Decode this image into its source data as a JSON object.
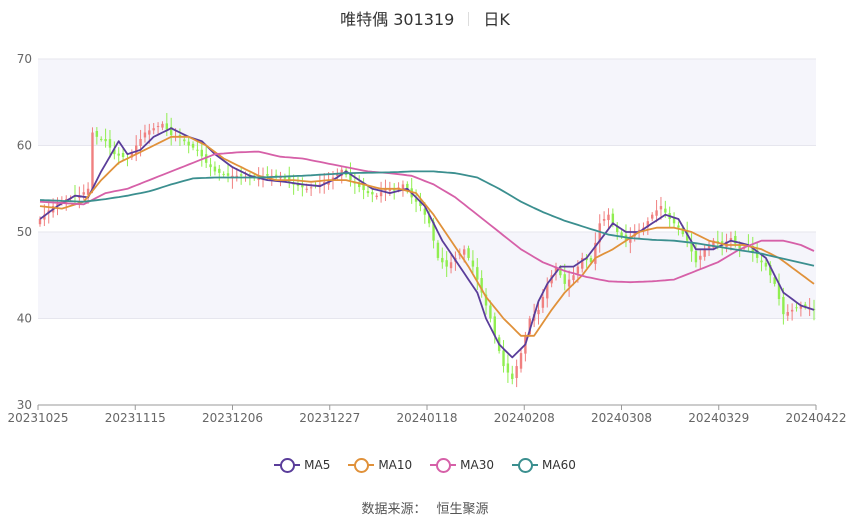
{
  "header": {
    "stock": "唯特偶 301319",
    "period": "日K"
  },
  "source": {
    "label": "数据来源：",
    "value": "恒生聚源"
  },
  "colors": {
    "up": "#f08080",
    "down": "#90ee50",
    "MA5": "#5a3d9a",
    "MA10": "#e0913a",
    "MA30": "#d660a8",
    "MA60": "#3b8f8f"
  },
  "chart_data": {
    "type": "candlestick",
    "title": "唯特偶 301319 日K",
    "ylim": [
      30,
      70
    ],
    "y_ticks": [
      30,
      40,
      50,
      60,
      70
    ],
    "x_tick_labels": [
      "20231025",
      "20231115",
      "20231206",
      "20231227",
      "20240118",
      "20240208",
      "20240308",
      "20240329",
      "20240422"
    ],
    "legend": [
      "MA5",
      "MA10",
      "MA30",
      "MA60"
    ],
    "ma_anchors": {
      "MA5": [
        [
          0,
          51.5
        ],
        [
          4,
          53
        ],
        [
          8,
          54.2
        ],
        [
          11,
          54
        ],
        [
          14,
          57
        ],
        [
          18,
          60.5
        ],
        [
          20,
          59
        ],
        [
          23,
          59.5
        ],
        [
          26,
          61
        ],
        [
          30,
          62
        ],
        [
          34,
          61
        ],
        [
          37,
          60.5
        ],
        [
          40,
          59
        ],
        [
          44,
          57.5
        ],
        [
          48,
          56.5
        ],
        [
          52,
          56
        ],
        [
          56,
          55.8
        ],
        [
          60,
          55.5
        ],
        [
          64,
          55.3
        ],
        [
          67,
          56
        ],
        [
          70,
          57
        ],
        [
          73,
          56
        ],
        [
          76,
          55
        ],
        [
          80,
          54.5
        ],
        [
          84,
          55
        ],
        [
          88,
          53
        ],
        [
          92,
          49
        ],
        [
          96,
          46
        ],
        [
          100,
          43
        ],
        [
          102,
          40
        ],
        [
          105,
          37
        ],
        [
          108,
          35.5
        ],
        [
          111,
          37
        ],
        [
          114,
          42
        ],
        [
          116,
          44
        ],
        [
          119,
          46
        ],
        [
          122,
          46
        ],
        [
          125,
          47
        ],
        [
          128,
          49
        ],
        [
          131,
          51
        ],
        [
          134,
          50
        ],
        [
          137,
          50
        ],
        [
          140,
          51
        ],
        [
          143,
          52
        ],
        [
          146,
          51.5
        ],
        [
          150,
          48
        ],
        [
          154,
          48
        ],
        [
          158,
          49
        ],
        [
          162,
          48.5
        ],
        [
          166,
          47
        ],
        [
          170,
          43
        ],
        [
          174,
          41.5
        ],
        [
          177,
          41
        ]
      ],
      "MA10": [
        [
          0,
          53
        ],
        [
          5,
          52.7
        ],
        [
          10,
          53.5
        ],
        [
          14,
          56
        ],
        [
          18,
          58
        ],
        [
          22,
          59
        ],
        [
          26,
          60
        ],
        [
          30,
          61
        ],
        [
          34,
          61
        ],
        [
          38,
          60
        ],
        [
          42,
          58.5
        ],
        [
          46,
          57.5
        ],
        [
          50,
          56.5
        ],
        [
          54,
          56
        ],
        [
          58,
          56
        ],
        [
          62,
          55.8
        ],
        [
          66,
          56
        ],
        [
          70,
          56
        ],
        [
          74,
          55.5
        ],
        [
          78,
          55
        ],
        [
          82,
          55
        ],
        [
          86,
          54.5
        ],
        [
          90,
          52
        ],
        [
          94,
          49
        ],
        [
          98,
          46
        ],
        [
          102,
          42.5
        ],
        [
          106,
          40
        ],
        [
          110,
          38
        ],
        [
          113,
          38
        ],
        [
          117,
          41
        ],
        [
          120,
          43
        ],
        [
          124,
          45
        ],
        [
          127,
          47
        ],
        [
          131,
          48
        ],
        [
          134,
          49
        ],
        [
          137,
          50
        ],
        [
          141,
          50.5
        ],
        [
          145,
          50.5
        ],
        [
          149,
          50
        ],
        [
          153,
          49
        ],
        [
          157,
          48.5
        ],
        [
          161,
          48.5
        ],
        [
          165,
          48
        ],
        [
          169,
          47
        ],
        [
          173,
          45.5
        ],
        [
          177,
          44
        ]
      ],
      "MA30": [
        [
          0,
          53.5
        ],
        [
          10,
          53.2
        ],
        [
          15,
          54.5
        ],
        [
          20,
          55
        ],
        [
          25,
          56
        ],
        [
          30,
          57
        ],
        [
          35,
          58
        ],
        [
          40,
          59
        ],
        [
          45,
          59.2
        ],
        [
          50,
          59.3
        ],
        [
          55,
          58.7
        ],
        [
          60,
          58.5
        ],
        [
          65,
          58
        ],
        [
          70,
          57.5
        ],
        [
          75,
          57
        ],
        [
          80,
          56.8
        ],
        [
          85,
          56.5
        ],
        [
          90,
          55.5
        ],
        [
          95,
          54
        ],
        [
          100,
          52
        ],
        [
          105,
          50
        ],
        [
          110,
          48
        ],
        [
          115,
          46.5
        ],
        [
          120,
          45.5
        ],
        [
          125,
          44.8
        ],
        [
          130,
          44.3
        ],
        [
          135,
          44.2
        ],
        [
          140,
          44.3
        ],
        [
          145,
          44.5
        ],
        [
          150,
          45.5
        ],
        [
          155,
          46.5
        ],
        [
          160,
          48
        ],
        [
          165,
          49
        ],
        [
          170,
          49
        ],
        [
          174,
          48.5
        ],
        [
          177,
          47.8
        ]
      ],
      "MA60": [
        [
          0,
          53.7
        ],
        [
          10,
          53.5
        ],
        [
          15,
          53.8
        ],
        [
          20,
          54.2
        ],
        [
          25,
          54.7
        ],
        [
          30,
          55.5
        ],
        [
          35,
          56.2
        ],
        [
          40,
          56.3
        ],
        [
          50,
          56.3
        ],
        [
          60,
          56.5
        ],
        [
          70,
          56.8
        ],
        [
          80,
          56.9
        ],
        [
          85,
          57
        ],
        [
          90,
          57
        ],
        [
          95,
          56.8
        ],
        [
          100,
          56.3
        ],
        [
          105,
          55
        ],
        [
          110,
          53.5
        ],
        [
          115,
          52.3
        ],
        [
          120,
          51.3
        ],
        [
          125,
          50.5
        ],
        [
          130,
          49.7
        ],
        [
          135,
          49.3
        ],
        [
          140,
          49.1
        ],
        [
          145,
          49
        ],
        [
          150,
          48.7
        ],
        [
          155,
          48.3
        ],
        [
          160,
          47.9
        ],
        [
          165,
          47.5
        ],
        [
          170,
          46.9
        ],
        [
          177,
          46.1
        ]
      ]
    },
    "candle_anchors": [
      [
        0,
        51.5
      ],
      [
        3,
        53
      ],
      [
        6,
        53.8
      ],
      [
        9,
        54.2
      ],
      [
        11,
        55
      ],
      [
        12,
        61.5
      ],
      [
        13,
        61
      ],
      [
        15,
        60.5
      ],
      [
        17,
        59
      ],
      [
        20,
        58.5
      ],
      [
        22,
        60
      ],
      [
        24,
        61.5
      ],
      [
        26,
        62
      ],
      [
        28,
        62.5
      ],
      [
        30,
        61.2
      ],
      [
        32,
        61
      ],
      [
        34,
        60
      ],
      [
        36,
        59.5
      ],
      [
        38,
        58
      ],
      [
        40,
        57
      ],
      [
        43,
        56.5
      ],
      [
        46,
        56.5
      ],
      [
        49,
        56.2
      ],
      [
        52,
        56.5
      ],
      [
        55,
        56.5
      ],
      [
        58,
        55.5
      ],
      [
        61,
        55
      ],
      [
        64,
        55.5
      ],
      [
        67,
        56.3
      ],
      [
        69,
        57.2
      ],
      [
        71,
        56
      ],
      [
        73,
        55.2
      ],
      [
        75,
        54.5
      ],
      [
        77,
        54.2
      ],
      [
        79,
        55
      ],
      [
        81,
        54.8
      ],
      [
        83,
        55.5
      ],
      [
        85,
        54
      ],
      [
        87,
        53
      ],
      [
        89,
        51
      ],
      [
        91,
        47
      ],
      [
        93,
        46
      ],
      [
        95,
        47
      ],
      [
        97,
        48
      ],
      [
        99,
        46
      ],
      [
        101,
        43
      ],
      [
        103,
        40
      ],
      [
        104,
        38
      ],
      [
        106,
        34.5
      ],
      [
        108,
        33
      ],
      [
        110,
        36
      ],
      [
        112,
        40
      ],
      [
        114,
        41
      ],
      [
        116,
        44
      ],
      [
        118,
        46
      ],
      [
        120,
        44
      ],
      [
        122,
        45
      ],
      [
        124,
        47
      ],
      [
        126,
        46.5
      ],
      [
        128,
        51
      ],
      [
        130,
        52
      ],
      [
        132,
        50
      ],
      [
        134,
        49
      ],
      [
        136,
        50
      ],
      [
        138,
        50.5
      ],
      [
        140,
        52
      ],
      [
        142,
        53
      ],
      [
        144,
        51.5
      ],
      [
        146,
        50.5
      ],
      [
        148,
        49
      ],
      [
        150,
        46.5
      ],
      [
        152,
        48
      ],
      [
        154,
        49
      ],
      [
        156,
        48.5
      ],
      [
        158,
        49.3
      ],
      [
        160,
        48
      ],
      [
        162,
        48.5
      ],
      [
        164,
        47
      ],
      [
        166,
        46
      ],
      [
        168,
        44
      ],
      [
        170,
        40.5
      ],
      [
        172,
        41
      ],
      [
        174,
        41.5
      ],
      [
        177,
        41
      ]
    ],
    "n_days": 178
  }
}
